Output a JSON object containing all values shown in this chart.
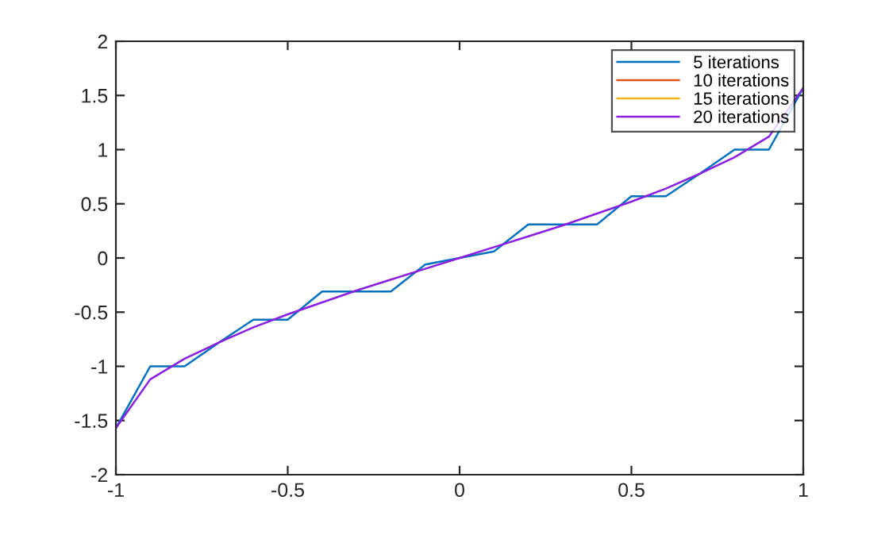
{
  "chart_data": {
    "type": "line",
    "x": [
      -1,
      -0.9,
      -0.8,
      -0.7,
      -0.6,
      -0.5,
      -0.4,
      -0.3,
      -0.2,
      -0.1,
      0,
      0.1,
      0.2,
      0.3,
      0.4,
      0.5,
      0.6,
      0.7,
      0.8,
      0.9,
      1
    ],
    "series": [
      {
        "name": "5 iterations",
        "color": "#0072bd",
        "values": [
          -1.57,
          -1.0,
          -1.0,
          -0.78,
          -0.57,
          -0.57,
          -0.31,
          -0.31,
          -0.31,
          -0.06,
          0,
          0.06,
          0.31,
          0.31,
          0.31,
          0.57,
          0.57,
          0.78,
          1.0,
          1.0,
          1.57
        ]
      },
      {
        "name": "10 iterations",
        "color": "#d95319",
        "values": [
          null,
          null,
          null,
          null,
          null,
          null,
          null,
          null,
          null,
          null,
          null,
          null,
          null,
          null,
          null,
          null,
          null,
          null,
          null,
          null,
          null
        ]
      },
      {
        "name": "15 iterations",
        "color": "#edb120",
        "values": [
          null,
          null,
          null,
          null,
          null,
          null,
          null,
          null,
          null,
          null,
          null,
          null,
          null,
          null,
          null,
          null,
          null,
          null,
          null,
          null,
          null
        ]
      },
      {
        "name": "20 iterations",
        "color": "#8a1fe0",
        "values": [
          -1.57,
          -1.12,
          -0.93,
          -0.78,
          -0.64,
          -0.52,
          -0.41,
          -0.3,
          -0.2,
          -0.1,
          0,
          0.1,
          0.2,
          0.3,
          0.41,
          0.52,
          0.64,
          0.78,
          0.93,
          1.12,
          1.57
        ]
      }
    ],
    "xlim": [
      -1,
      1
    ],
    "xticks": [
      -1,
      -0.5,
      0,
      0.5,
      1
    ],
    "ylim": [
      -2,
      2
    ],
    "yticks": [
      -2,
      -1.5,
      -1,
      -0.5,
      0,
      0.5,
      1,
      1.5,
      2
    ],
    "grid": false,
    "legend": "top right"
  }
}
